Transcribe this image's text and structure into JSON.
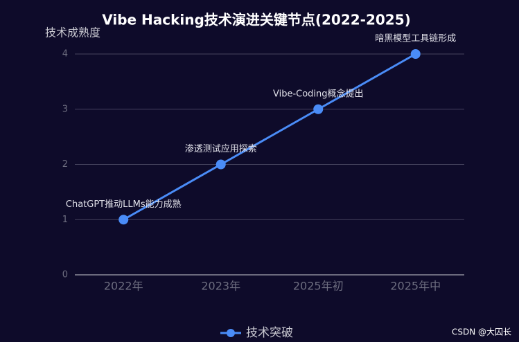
{
  "chart_data": {
    "type": "line",
    "title": "Vibe Hacking技术演进关键节点(2022-2025)",
    "y_axis_label": "技术成熟度",
    "categories": [
      "2022年",
      "2023年",
      "2025年初",
      "2025年中"
    ],
    "series": [
      {
        "name": "技术突破",
        "color": "#4a8cf7",
        "values": [
          1,
          2,
          3,
          4
        ],
        "point_labels": [
          "ChatGPT推动LLMs能力成熟",
          "渗透测试应用探索",
          "Vibe-Coding概念提出",
          "暗黑模型工具链形成"
        ]
      }
    ],
    "ylim": [
      0,
      4
    ],
    "yticks": [
      0,
      1,
      2,
      3,
      4
    ],
    "grid": true,
    "watermark": "CSDN @大囚长"
  }
}
